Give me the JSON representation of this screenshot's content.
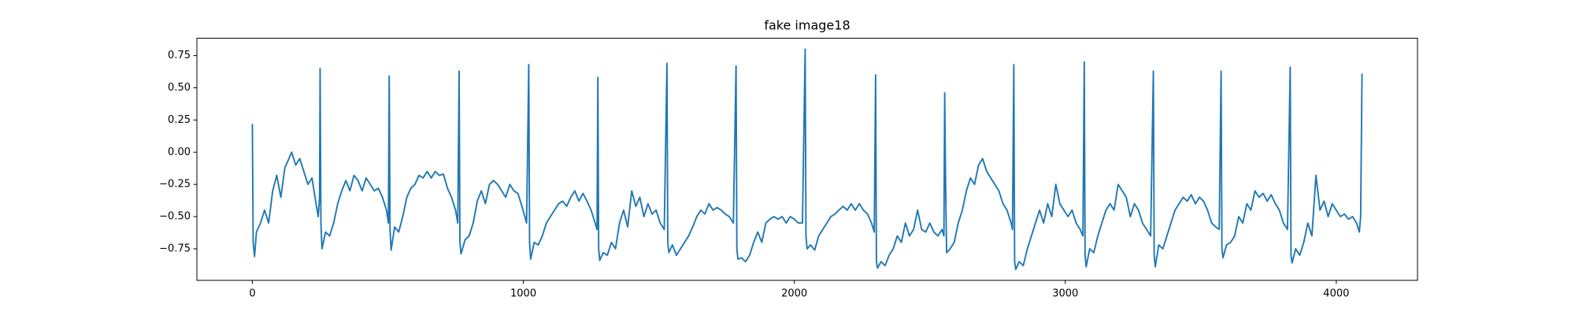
{
  "chart_data": {
    "type": "line",
    "title": "fake image18",
    "color": "#1f77b4",
    "xlim": [
      -204.75,
      4299.75
    ],
    "xticks": [
      0,
      1000,
      2000,
      3000,
      4000
    ],
    "ylim": [
      -0.995,
      0.885
    ],
    "yticks": [
      {
        "value": -0.75,
        "label": "−0.75"
      },
      {
        "value": -0.5,
        "label": "−0.50"
      },
      {
        "value": -0.25,
        "label": "−0.25"
      },
      {
        "value": 0,
        "label": "0.00"
      },
      {
        "value": 0.25,
        "label": "0.25"
      },
      {
        "value": 0.5,
        "label": "0.50"
      },
      {
        "value": 0.75,
        "label": "0.75"
      }
    ],
    "x": [
      0,
      3,
      8,
      15,
      30,
      45,
      60,
      75,
      90,
      105,
      120,
      135,
      145,
      160,
      175,
      190,
      205,
      220,
      235,
      243,
      248,
      250,
      253,
      257,
      270,
      285,
      300,
      315,
      330,
      345,
      360,
      375,
      390,
      405,
      420,
      435,
      450,
      465,
      480,
      495,
      502,
      505,
      508,
      512,
      525,
      540,
      555,
      570,
      585,
      600,
      615,
      630,
      645,
      660,
      675,
      690,
      705,
      720,
      735,
      750,
      758,
      763,
      766,
      770,
      785,
      800,
      815,
      830,
      845,
      860,
      875,
      890,
      905,
      920,
      935,
      950,
      965,
      980,
      995,
      1012,
      1020,
      1023,
      1027,
      1040,
      1055,
      1070,
      1085,
      1100,
      1115,
      1130,
      1145,
      1160,
      1175,
      1190,
      1205,
      1220,
      1235,
      1250,
      1265,
      1272,
      1275,
      1278,
      1282,
      1295,
      1310,
      1325,
      1340,
      1355,
      1370,
      1385,
      1400,
      1415,
      1430,
      1445,
      1460,
      1475,
      1490,
      1505,
      1520,
      1530,
      1533,
      1537,
      1550,
      1565,
      1580,
      1595,
      1610,
      1625,
      1640,
      1655,
      1670,
      1685,
      1700,
      1715,
      1730,
      1745,
      1760,
      1775,
      1785,
      1788,
      1792,
      1805,
      1820,
      1835,
      1850,
      1865,
      1880,
      1895,
      1910,
      1925,
      1940,
      1955,
      1970,
      1985,
      2000,
      2015,
      2030,
      2040,
      2043,
      2047,
      2060,
      2075,
      2090,
      2105,
      2120,
      2135,
      2150,
      2165,
      2180,
      2195,
      2210,
      2225,
      2240,
      2255,
      2270,
      2285,
      2295,
      2300,
      2303,
      2307,
      2320,
      2335,
      2350,
      2365,
      2380,
      2395,
      2410,
      2425,
      2440,
      2455,
      2470,
      2485,
      2500,
      2515,
      2530,
      2545,
      2552,
      2555,
      2558,
      2562,
      2575,
      2590,
      2605,
      2620,
      2635,
      2650,
      2665,
      2680,
      2695,
      2710,
      2725,
      2740,
      2755,
      2770,
      2785,
      2800,
      2805,
      2810,
      2813,
      2817,
      2830,
      2845,
      2860,
      2875,
      2890,
      2905,
      2920,
      2935,
      2950,
      2965,
      2980,
      2995,
      3010,
      3025,
      3040,
      3055,
      3065,
      3070,
      3073,
      3077,
      3090,
      3105,
      3120,
      3135,
      3150,
      3165,
      3180,
      3195,
      3210,
      3225,
      3240,
      3255,
      3270,
      3285,
      3300,
      3315,
      3325,
      3328,
      3332,
      3345,
      3360,
      3375,
      3390,
      3405,
      3420,
      3435,
      3450,
      3465,
      3480,
      3495,
      3510,
      3525,
      3540,
      3555,
      3568,
      3575,
      3578,
      3582,
      3595,
      3610,
      3625,
      3640,
      3655,
      3670,
      3685,
      3700,
      3715,
      3730,
      3745,
      3760,
      3775,
      3790,
      3805,
      3820,
      3830,
      3833,
      3837,
      3850,
      3865,
      3880,
      3895,
      3910,
      3925,
      3940,
      3955,
      3970,
      3985,
      4000,
      4015,
      4030,
      4045,
      4060,
      4075,
      4085,
      4090,
      4095
    ],
    "values": [
      0.22,
      -0.7,
      -0.81,
      -0.62,
      -0.55,
      -0.45,
      -0.55,
      -0.3,
      -0.18,
      -0.35,
      -0.12,
      -0.05,
      0.0,
      -0.1,
      -0.05,
      -0.15,
      -0.25,
      -0.2,
      -0.4,
      -0.5,
      -0.35,
      0.65,
      -0.55,
      -0.75,
      -0.62,
      -0.65,
      -0.55,
      -0.4,
      -0.3,
      -0.22,
      -0.3,
      -0.18,
      -0.22,
      -0.3,
      -0.2,
      -0.25,
      -0.3,
      -0.28,
      -0.35,
      -0.45,
      -0.55,
      0.59,
      -0.6,
      -0.76,
      -0.58,
      -0.62,
      -0.5,
      -0.35,
      -0.28,
      -0.25,
      -0.18,
      -0.2,
      -0.15,
      -0.2,
      -0.15,
      -0.18,
      -0.17,
      -0.28,
      -0.35,
      -0.45,
      -0.55,
      0.63,
      -0.7,
      -0.79,
      -0.68,
      -0.65,
      -0.55,
      -0.38,
      -0.3,
      -0.4,
      -0.25,
      -0.22,
      -0.25,
      -0.3,
      -0.35,
      -0.25,
      -0.3,
      -0.32,
      -0.42,
      -0.55,
      0.68,
      -0.7,
      -0.83,
      -0.7,
      -0.72,
      -0.65,
      -0.55,
      -0.5,
      -0.45,
      -0.4,
      -0.38,
      -0.42,
      -0.35,
      -0.3,
      -0.38,
      -0.32,
      -0.38,
      -0.45,
      -0.55,
      -0.6,
      0.58,
      -0.75,
      -0.84,
      -0.78,
      -0.8,
      -0.7,
      -0.75,
      -0.55,
      -0.45,
      -0.58,
      -0.3,
      -0.42,
      -0.35,
      -0.5,
      -0.4,
      -0.48,
      -0.45,
      -0.55,
      -0.6,
      0.69,
      -0.7,
      -0.78,
      -0.72,
      -0.8,
      -0.75,
      -0.7,
      -0.65,
      -0.58,
      -0.5,
      -0.45,
      -0.48,
      -0.4,
      -0.45,
      -0.43,
      -0.45,
      -0.48,
      -0.5,
      -0.55,
      0.67,
      -0.75,
      -0.83,
      -0.82,
      -0.85,
      -0.8,
      -0.7,
      -0.62,
      -0.7,
      -0.55,
      -0.52,
      -0.5,
      -0.52,
      -0.5,
      -0.55,
      -0.5,
      -0.52,
      -0.55,
      -0.55,
      0.8,
      -0.65,
      -0.75,
      -0.72,
      -0.76,
      -0.65,
      -0.6,
      -0.55,
      -0.5,
      -0.48,
      -0.45,
      -0.42,
      -0.45,
      -0.4,
      -0.45,
      -0.4,
      -0.45,
      -0.48,
      -0.55,
      -0.62,
      0.6,
      -0.85,
      -0.9,
      -0.85,
      -0.88,
      -0.8,
      -0.75,
      -0.65,
      -0.7,
      -0.55,
      -0.65,
      -0.6,
      -0.45,
      -0.6,
      -0.62,
      -0.55,
      -0.62,
      -0.65,
      -0.6,
      -0.65,
      0.46,
      -0.2,
      -0.78,
      -0.75,
      -0.7,
      -0.55,
      -0.45,
      -0.3,
      -0.2,
      -0.25,
      -0.1,
      -0.05,
      -0.15,
      -0.2,
      -0.25,
      -0.3,
      -0.4,
      -0.45,
      -0.55,
      -0.6,
      0.68,
      -0.85,
      -0.91,
      -0.85,
      -0.88,
      -0.75,
      -0.65,
      -0.55,
      -0.45,
      -0.55,
      -0.4,
      -0.5,
      -0.25,
      -0.4,
      -0.45,
      -0.5,
      -0.45,
      -0.55,
      -0.6,
      -0.65,
      0.7,
      -0.8,
      -0.89,
      -0.75,
      -0.78,
      -0.65,
      -0.55,
      -0.45,
      -0.4,
      -0.45,
      -0.25,
      -0.3,
      -0.35,
      -0.5,
      -0.4,
      -0.45,
      -0.55,
      -0.6,
      -0.65,
      0.63,
      -0.8,
      -0.89,
      -0.72,
      -0.75,
      -0.65,
      -0.55,
      -0.45,
      -0.4,
      -0.35,
      -0.38,
      -0.33,
      -0.4,
      -0.35,
      -0.38,
      -0.45,
      -0.55,
      -0.58,
      -0.6,
      0.63,
      -0.75,
      -0.82,
      -0.72,
      -0.7,
      -0.65,
      -0.5,
      -0.55,
      -0.4,
      -0.45,
      -0.3,
      -0.35,
      -0.32,
      -0.38,
      -0.33,
      -0.4,
      -0.45,
      -0.55,
      -0.6,
      0.66,
      -0.8,
      -0.86,
      -0.75,
      -0.8,
      -0.7,
      -0.55,
      -0.65,
      -0.18,
      -0.45,
      -0.38,
      -0.5,
      -0.4,
      -0.45,
      -0.5,
      -0.48,
      -0.52,
      -0.5,
      -0.55,
      -0.62,
      -0.5,
      0.61
    ]
  }
}
